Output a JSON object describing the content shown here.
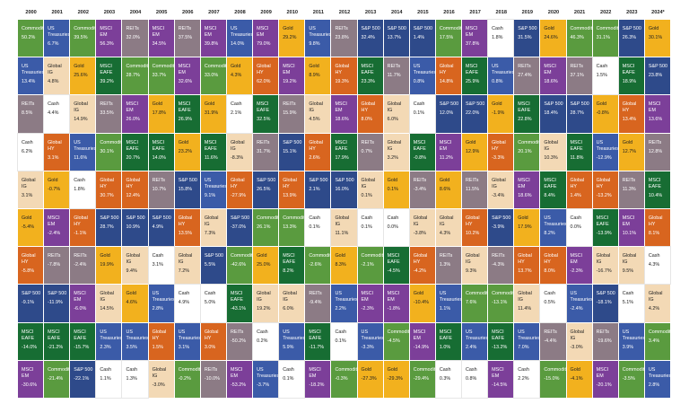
{
  "colors": {
    "Commodities": "#5a9b3f",
    "US Treasuries": "#3b5ba8",
    "REITs": "#8c7b85",
    "Cash": "#ffffff",
    "Global IG": "#f3d9b5",
    "Gold": "#f2b11e",
    "Global HY": "#d8651f",
    "MSCI EM": "#7c3f99",
    "S&P 500": "#2e4a8a",
    "MSCI EAFE": "#176d33"
  },
  "chart_data": {
    "type": "table",
    "title": "",
    "columns": [
      "2000",
      "2001",
      "2002",
      "2003",
      "2004",
      "2005",
      "2006",
      "2007",
      "2008",
      "2009",
      "2010",
      "2011",
      "2012",
      "2013",
      "2014",
      "2015",
      "2016",
      "2017",
      "2018",
      "2019",
      "2020",
      "2021",
      "2022",
      "2023",
      "2024*"
    ],
    "rows": [
      [
        [
          "Commodities",
          "50.2%"
        ],
        [
          "US Treasuries",
          "6.7%"
        ],
        [
          "Commodities",
          "39.5%"
        ],
        [
          "MSCI EM",
          "56.3%"
        ],
        [
          "REITs",
          "32.0%"
        ],
        [
          "MSCI EM",
          "34.5%"
        ],
        [
          "REITs",
          "37.5%"
        ],
        [
          "MSCI EM",
          "39.8%"
        ],
        [
          "US Treasuries",
          "14.0%"
        ],
        [
          "MSCI EM",
          "79.0%"
        ],
        [
          "Gold",
          "29.2%"
        ],
        [
          "US Treasuries",
          "9.8%"
        ],
        [
          "REITs",
          "23.8%"
        ],
        [
          "S&P 500",
          "32.4%"
        ],
        [
          "S&P 500",
          "13.7%"
        ],
        [
          "S&P 500",
          "1.4%"
        ],
        [
          "Commodities",
          "17.5%"
        ],
        [
          "MSCI EM",
          "37.8%"
        ],
        [
          "Cash",
          "1.8%"
        ],
        [
          "S&P 500",
          "31.5%"
        ],
        [
          "Gold",
          "24.6%"
        ],
        [
          "Commodities",
          "46.3%"
        ],
        [
          "Commodities",
          "31.1%"
        ],
        [
          "S&P 500",
          "26.3%"
        ],
        [
          "Gold",
          "30.1%"
        ]
      ],
      [
        [
          "US Treasuries",
          "13.4%"
        ],
        [
          "Global IG",
          "4.8%"
        ],
        [
          "Gold",
          "25.6%"
        ],
        [
          "MSCI EAFE",
          "39.2%"
        ],
        [
          "Commodities",
          "28.7%"
        ],
        [
          "Commodities",
          "33.7%"
        ],
        [
          "MSCI EM",
          "32.6%"
        ],
        [
          "Commodities",
          "33.0%"
        ],
        [
          "Gold",
          "4.3%"
        ],
        [
          "Global HY",
          "62.0%"
        ],
        [
          "MSCI EM",
          "19.2%"
        ],
        [
          "Gold",
          "8.9%"
        ],
        [
          "Global HY",
          "19.3%"
        ],
        [
          "MSCI EAFE",
          "23.3%"
        ],
        [
          "REITs",
          "11.7%"
        ],
        [
          "US Treasuries",
          "0.8%"
        ],
        [
          "Global HY",
          "14.8%"
        ],
        [
          "MSCI EAFE",
          "25.9%"
        ],
        [
          "US Treasuries",
          "0.8%"
        ],
        [
          "REITs",
          "27.4%"
        ],
        [
          "MSCI EM",
          "18.6%"
        ],
        [
          "REITs",
          "37.1%"
        ],
        [
          "Cash",
          "1.5%"
        ],
        [
          "MSCI EAFE",
          "18.9%"
        ],
        [
          "S&P 500",
          "23.8%"
        ]
      ],
      [
        [
          "REITs",
          "8.5%"
        ],
        [
          "Cash",
          "4.4%"
        ],
        [
          "Global IG",
          "14.9%"
        ],
        [
          "REITs",
          "33.5%"
        ],
        [
          "MSCI EM",
          "26.0%"
        ],
        [
          "Gold",
          "17.8%"
        ],
        [
          "MSCI EAFE",
          "26.9%"
        ],
        [
          "Gold",
          "31.9%"
        ],
        [
          "Cash",
          "2.1%"
        ],
        [
          "MSCI EAFE",
          "32.5%"
        ],
        [
          "REITs",
          "15.9%"
        ],
        [
          "Global IG",
          "4.5%"
        ],
        [
          "MSCI EM",
          "18.6%"
        ],
        [
          "Global HY",
          "8.0%"
        ],
        [
          "Global IG",
          "6.0%"
        ],
        [
          "Cash",
          "0.1%"
        ],
        [
          "S&P 500",
          "12.0%"
        ],
        [
          "S&P 500",
          "22.0%"
        ],
        [
          "Gold",
          "-1.9%"
        ],
        [
          "MSCI EAFE",
          "22.8%"
        ],
        [
          "S&P 500",
          "18.4%"
        ],
        [
          "S&P 500",
          "28.7%"
        ],
        [
          "Gold",
          "-0.8%"
        ],
        [
          "Global HY",
          "13.4%"
        ],
        [
          "MSCI EM",
          "13.6%"
        ]
      ],
      [
        [
          "Cash",
          "6.2%"
        ],
        [
          "Global HY",
          "3.1%"
        ],
        [
          "US Treasuries",
          "11.6%"
        ],
        [
          "Commodities",
          "30.1%"
        ],
        [
          "MSCI EAFE",
          "20.7%"
        ],
        [
          "MSCI EAFE",
          "14.0%"
        ],
        [
          "Gold",
          "23.2%"
        ],
        [
          "MSCI EAFE",
          "11.6%"
        ],
        [
          "Global IG",
          "-8.3%"
        ],
        [
          "REITs",
          "31.7%"
        ],
        [
          "S&P 500",
          "15.1%"
        ],
        [
          "Global HY",
          "2.6%"
        ],
        [
          "MSCI EAFE",
          "17.9%"
        ],
        [
          "REITs",
          "0.7%"
        ],
        [
          "Global IG",
          "3.2%"
        ],
        [
          "MSCI EAFE",
          "-0.8%"
        ],
        [
          "MSCI EM",
          "11.2%"
        ],
        [
          "Gold",
          "12.9%"
        ],
        [
          "Global HY",
          "-3.3%"
        ],
        [
          "Commodities",
          "20.1%"
        ],
        [
          "Global IG",
          "10.3%"
        ],
        [
          "MSCI EAFE",
          "11.8%"
        ],
        [
          "US Treasuries",
          "-12.9%"
        ],
        [
          "Gold",
          "12.7%"
        ],
        [
          "REITs",
          "12.8%"
        ]
      ],
      [
        [
          "Global IG",
          "3.1%"
        ],
        [
          "Gold",
          "-0.7%"
        ],
        [
          "Cash",
          "1.8%"
        ],
        [
          "Global HY",
          "30.7%"
        ],
        [
          "Global HY",
          "12.4%"
        ],
        [
          "REITs",
          "10.7%"
        ],
        [
          "S&P 500",
          "15.8%"
        ],
        [
          "US Treasuries",
          "9.1%"
        ],
        [
          "Global HY",
          "-27.9%"
        ],
        [
          "S&P 500",
          "26.5%"
        ],
        [
          "Global HY",
          "13.9%"
        ],
        [
          "S&P 500",
          "2.1%"
        ],
        [
          "S&P 500",
          "16.0%"
        ],
        [
          "Global IG",
          "0.1%"
        ],
        [
          "Gold",
          "0.1%"
        ],
        [
          "REITs",
          "-3.4%"
        ],
        [
          "Gold",
          "8.6%"
        ],
        [
          "REITs",
          "11.5%"
        ],
        [
          "Global IG",
          "-3.4%"
        ],
        [
          "MSCI EM",
          "18.6%"
        ],
        [
          "MSCI EAFE",
          "8.4%"
        ],
        [
          "Global HY",
          "1.4%"
        ],
        [
          "Global HY",
          "-13.2%"
        ],
        [
          "REITs",
          "11.3%"
        ],
        [
          "MSCI EAFE",
          "10.4%"
        ]
      ],
      [
        [
          "Gold",
          "-5.4%"
        ],
        [
          "MSCI EM",
          "-2.4%"
        ],
        [
          "Global HY",
          "-1.1%"
        ],
        [
          "S&P 500",
          "28.7%"
        ],
        [
          "S&P 500",
          "10.9%"
        ],
        [
          "S&P 500",
          "4.9%"
        ],
        [
          "Global HY",
          "13.5%"
        ],
        [
          "Global IG",
          "7.3%"
        ],
        [
          "S&P 500",
          "-37.0%"
        ],
        [
          "Commodities",
          "26.1%"
        ],
        [
          "Commodities",
          "13.3%"
        ],
        [
          "Cash",
          "0.1%"
        ],
        [
          "Global IG",
          "11.1%"
        ],
        [
          "Cash",
          "0.1%"
        ],
        [
          "Cash",
          "0.0%"
        ],
        [
          "Global IG",
          "-3.8%"
        ],
        [
          "Global IG",
          "4.3%"
        ],
        [
          "Global HY",
          "10.2%"
        ],
        [
          "S&P 500",
          "-3.9%"
        ],
        [
          "Gold",
          "17.9%"
        ],
        [
          "US Treasuries",
          "8.2%"
        ],
        [
          "Cash",
          "0.0%"
        ],
        [
          "MSCI EAFE",
          "-13.9%"
        ],
        [
          "MSCI EM",
          "10.1%"
        ],
        [
          "Global HY",
          "8.1%"
        ]
      ],
      [
        [
          "Global HY",
          "-5.8%"
        ],
        [
          "REITs",
          "-7.8%"
        ],
        [
          "REITs",
          "-2.4%"
        ],
        [
          "Gold",
          "19.9%"
        ],
        [
          "Global IG",
          "9.4%"
        ],
        [
          "Cash",
          "3.1%"
        ],
        [
          "Global IG",
          "7.2%"
        ],
        [
          "S&P 500",
          "5.5%"
        ],
        [
          "Commodities",
          "-42.6%"
        ],
        [
          "Gold",
          "25.0%"
        ],
        [
          "MSCI EAFE",
          "8.2%"
        ],
        [
          "Commodities",
          "-2.6%"
        ],
        [
          "Gold",
          "8.3%"
        ],
        [
          "Commodities",
          "-2.1%"
        ],
        [
          "MSCI EAFE",
          "-4.5%"
        ],
        [
          "Global HY",
          "-4.2%"
        ],
        [
          "REITs",
          "1.3%"
        ],
        [
          "Global IG",
          "9.3%"
        ],
        [
          "REITs",
          "-4.3%"
        ],
        [
          "Global HY",
          "13.7%"
        ],
        [
          "Global HY",
          "8.0%"
        ],
        [
          "MSCI EM",
          "-2.3%"
        ],
        [
          "Global IG",
          "-16.7%"
        ],
        [
          "Global IG",
          "9.5%"
        ],
        [
          "Cash",
          "4.3%"
        ]
      ],
      [
        [
          "S&P 500",
          "-9.1%"
        ],
        [
          "S&P 500",
          "-11.9%"
        ],
        [
          "MSCI EM",
          "-6.0%"
        ],
        [
          "Global IG",
          "14.5%"
        ],
        [
          "Gold",
          "4.6%"
        ],
        [
          "US Treasuries",
          "2.8%"
        ],
        [
          "Cash",
          "4.9%"
        ],
        [
          "Cash",
          "5.0%"
        ],
        [
          "MSCI EAFE",
          "-43.1%"
        ],
        [
          "Global IG",
          "19.2%"
        ],
        [
          "Global IG",
          "6.0%"
        ],
        [
          "REITs",
          "-9.4%"
        ],
        [
          "US Treasuries",
          "2.2%"
        ],
        [
          "MSCI EM",
          "-2.3%"
        ],
        [
          "MSCI EM",
          "-1.8%"
        ],
        [
          "Gold",
          "-10.4%"
        ],
        [
          "US Treasuries",
          "1.1%"
        ],
        [
          "Commodities",
          "7.6%"
        ],
        [
          "Commodities",
          "-13.1%"
        ],
        [
          "Global IG",
          "11.4%"
        ],
        [
          "Cash",
          "0.5%"
        ],
        [
          "US Treasuries",
          "-2.4%"
        ],
        [
          "S&P 500",
          "-18.1%"
        ],
        [
          "Cash",
          "5.1%"
        ],
        [
          "Global IG",
          "4.2%"
        ]
      ],
      [
        [
          "MSCI EAFE",
          "-14.0%"
        ],
        [
          "MSCI EAFE",
          "-21.2%"
        ],
        [
          "MSCI EAFE",
          "-15.7%"
        ],
        [
          "US Treasuries",
          "2.3%"
        ],
        [
          "US Treasuries",
          "3.5%"
        ],
        [
          "Global HY",
          "1.5%"
        ],
        [
          "US Treasuries",
          "3.1%"
        ],
        [
          "Global HY",
          "3.0%"
        ],
        [
          "REITs",
          "-50.2%"
        ],
        [
          "Cash",
          "0.2%"
        ],
        [
          "US Treasuries",
          "5.9%"
        ],
        [
          "MSCI EAFE",
          "-11.7%"
        ],
        [
          "Cash",
          "0.1%"
        ],
        [
          "US Treasuries",
          "-3.3%"
        ],
        [
          "Commodities",
          "-4.5%"
        ],
        [
          "MSCI EM",
          "-14.9%"
        ],
        [
          "MSCI EAFE",
          "1.0%"
        ],
        [
          "US Treasuries",
          "2.4%"
        ],
        [
          "MSCI EAFE",
          "-13.2%"
        ],
        [
          "US Treasuries",
          "7.0%"
        ],
        [
          "REITs",
          "-4.4%"
        ],
        [
          "Global IG",
          "-3.0%"
        ],
        [
          "REITs",
          "-19.6%"
        ],
        [
          "US Treasuries",
          "3.9%"
        ],
        [
          "Commodities",
          "3.4%"
        ]
      ],
      [
        [
          "MSCI EM",
          "-30.6%"
        ],
        [
          "Commodities",
          "-21.4%"
        ],
        [
          "S&P 500",
          "-22.1%"
        ],
        [
          "Cash",
          "1.1%"
        ],
        [
          "Cash",
          "1.3%"
        ],
        [
          "Global IG",
          "-3.0%"
        ],
        [
          "Commodities",
          "-0.2%"
        ],
        [
          "REITs",
          "-10.0%"
        ],
        [
          "MSCI EM",
          "-53.2%"
        ],
        [
          "US Treasuries",
          "-3.7%"
        ],
        [
          "Cash",
          "0.1%"
        ],
        [
          "MSCI EM",
          "-18.2%"
        ],
        [
          "Commodities",
          "-0.3%"
        ],
        [
          "Gold",
          "-27.3%"
        ],
        [
          "Gold",
          "-29.3%"
        ],
        [
          "Commodities",
          "-29.4%"
        ],
        [
          "Cash",
          "0.3%"
        ],
        [
          "Cash",
          "0.8%"
        ],
        [
          "MSCI EM",
          "-14.5%"
        ],
        [
          "Cash",
          "2.2%"
        ],
        [
          "Commodities",
          "-15.0%"
        ],
        [
          "Gold",
          "-4.1%"
        ],
        [
          "MSCI EM",
          "-20.1%"
        ],
        [
          "Commodities",
          "-3.5%"
        ],
        [
          "US Treasuries",
          "2.8%"
        ]
      ]
    ]
  }
}
